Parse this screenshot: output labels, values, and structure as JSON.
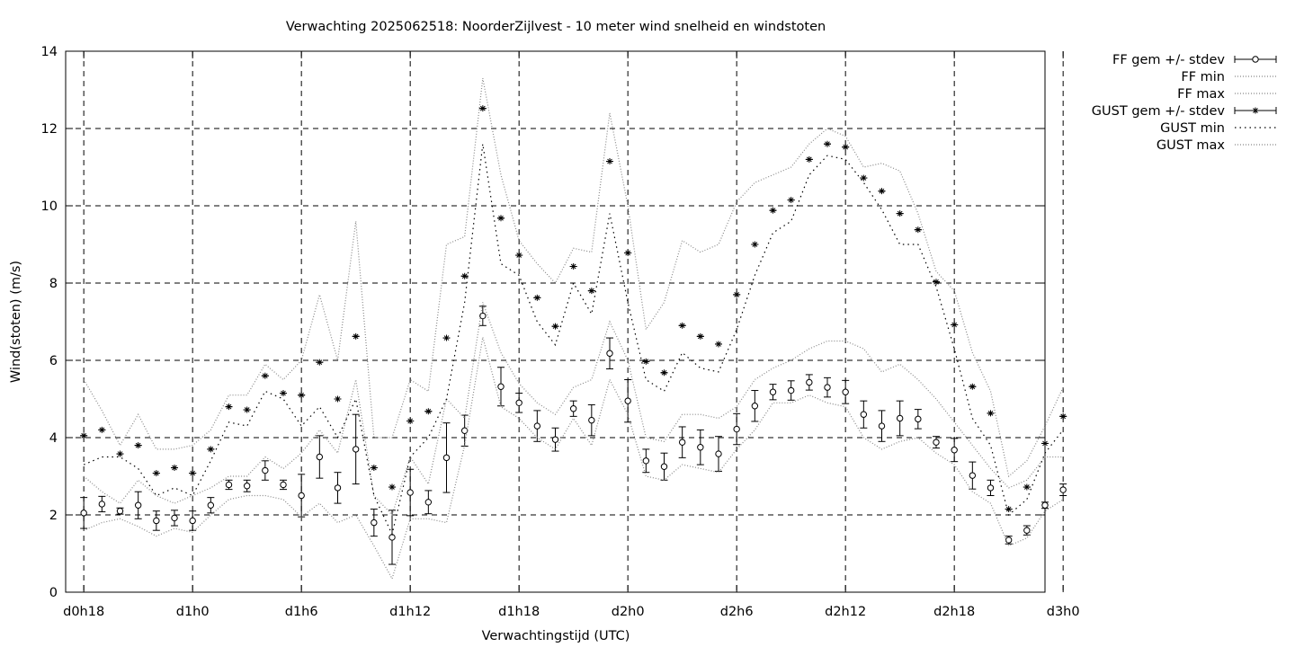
{
  "chart_data": {
    "type": "line",
    "title": "Verwachting 2025062518: NoorderZijlvest - 10 meter wind snelheid en windstoten",
    "xlabel": "Verwachtingstijd (UTC)",
    "ylabel": "Wind(stoten) (m/s)",
    "xlim": [
      17,
      71
    ],
    "ylim": [
      0,
      14
    ],
    "yticks": [
      0,
      2,
      4,
      6,
      8,
      10,
      12,
      14
    ],
    "xticks": [
      {
        "x": 18,
        "label": "d0h18"
      },
      {
        "x": 24,
        "label": "d1h0"
      },
      {
        "x": 30,
        "label": "d1h6"
      },
      {
        "x": 36,
        "label": "d1h12"
      },
      {
        "x": 42,
        "label": "d1h18"
      },
      {
        "x": 48,
        "label": "d2h0"
      },
      {
        "x": 54,
        "label": "d2h6"
      },
      {
        "x": 60,
        "label": "d2h12"
      },
      {
        "x": 66,
        "label": "d2h18"
      },
      {
        "x": 72,
        "label": "d3h0"
      }
    ],
    "grid": true,
    "legend_position": "outside-top-right",
    "x": [
      18,
      19,
      20,
      21,
      22,
      23,
      24,
      25,
      26,
      27,
      28,
      29,
      30,
      31,
      32,
      33,
      34,
      35,
      36,
      37,
      38,
      39,
      40,
      41,
      42,
      43,
      44,
      45,
      46,
      47,
      48,
      49,
      50,
      51,
      52,
      53,
      54,
      55,
      56,
      57,
      58,
      59,
      60,
      61,
      62,
      63,
      64,
      65,
      66,
      67,
      68,
      69,
      70,
      71,
      72
    ],
    "series": [
      {
        "name": "FF gem +/- stdev",
        "style": "points-errorbars",
        "marker": "circle",
        "values": [
          2.05,
          2.28,
          2.1,
          2.25,
          1.85,
          1.92,
          1.85,
          2.25,
          2.78,
          2.75,
          3.15,
          2.78,
          2.5,
          3.5,
          2.7,
          3.7,
          1.8,
          1.42,
          2.58,
          2.33,
          3.48,
          4.18,
          7.15,
          5.32,
          4.9,
          4.3,
          3.95,
          4.75,
          4.45,
          6.18,
          4.95,
          3.4,
          3.25,
          3.88,
          3.75,
          3.58,
          4.22,
          4.82,
          5.18,
          5.22,
          5.43,
          5.3,
          5.18,
          4.6,
          4.3,
          4.5,
          4.48,
          3.88,
          3.68,
          3.02,
          2.7,
          1.35,
          1.6,
          2.25,
          2.65
        ],
        "stdev": [
          0.4,
          0.2,
          0.08,
          0.35,
          0.25,
          0.2,
          0.25,
          0.2,
          0.12,
          0.15,
          0.25,
          0.12,
          0.55,
          0.55,
          0.4,
          0.9,
          0.35,
          0.7,
          0.6,
          0.3,
          0.9,
          0.4,
          0.25,
          0.5,
          0.25,
          0.4,
          0.3,
          0.2,
          0.4,
          0.4,
          0.55,
          0.3,
          0.35,
          0.4,
          0.45,
          0.45,
          0.4,
          0.4,
          0.2,
          0.25,
          0.2,
          0.25,
          0.3,
          0.35,
          0.4,
          0.45,
          0.25,
          0.15,
          0.3,
          0.35,
          0.2,
          0.1,
          0.12,
          0.08,
          0.15
        ]
      },
      {
        "name": "FF min",
        "style": "dotted",
        "values": [
          1.6,
          1.8,
          1.9,
          1.7,
          1.45,
          1.65,
          1.55,
          2.0,
          2.4,
          2.5,
          2.5,
          2.4,
          1.95,
          2.3,
          1.8,
          2.0,
          1.2,
          0.35,
          1.9,
          1.9,
          1.8,
          3.8,
          6.6,
          4.8,
          4.5,
          4.0,
          3.7,
          4.5,
          3.8,
          5.5,
          4.6,
          3.0,
          2.9,
          3.3,
          3.2,
          3.1,
          3.7,
          4.2,
          4.9,
          4.9,
          5.1,
          4.9,
          4.8,
          4.0,
          3.7,
          3.9,
          4.0,
          3.6,
          3.3,
          2.6,
          2.3,
          1.2,
          1.4,
          2.1,
          2.4
        ]
      },
      {
        "name": "FF max",
        "style": "dotted",
        "values": [
          3.0,
          2.6,
          2.3,
          2.9,
          2.5,
          2.3,
          2.5,
          2.7,
          3.0,
          3.0,
          3.5,
          3.2,
          3.6,
          4.2,
          3.6,
          5.5,
          2.5,
          2.0,
          3.5,
          2.8,
          5.0,
          4.5,
          7.5,
          6.2,
          5.4,
          4.9,
          4.6,
          5.3,
          5.5,
          7.0,
          6.0,
          4.0,
          3.9,
          4.6,
          4.6,
          4.5,
          4.8,
          5.5,
          5.8,
          6.0,
          6.3,
          6.5,
          6.5,
          6.3,
          5.7,
          5.9,
          5.5,
          5.0,
          4.4,
          3.8,
          3.2,
          2.7,
          2.9,
          3.5,
          3.5
        ]
      },
      {
        "name": "GUST gem +/- stdev",
        "style": "points-errorbars",
        "marker": "star",
        "values": [
          4.05,
          4.2,
          3.58,
          3.8,
          3.08,
          3.22,
          3.08,
          3.7,
          4.8,
          4.72,
          5.6,
          5.15,
          5.1,
          5.95,
          5.0,
          6.62,
          3.22,
          2.72,
          4.43,
          4.68,
          6.58,
          8.18,
          12.52,
          9.68,
          8.72,
          7.62,
          6.88,
          8.43,
          7.8,
          11.15,
          8.78,
          5.97,
          5.68,
          6.9,
          6.62,
          6.42,
          7.7,
          9.0,
          9.88,
          10.15,
          11.2,
          11.6,
          11.52,
          10.72,
          10.38,
          9.8,
          9.38,
          8.03,
          6.92,
          5.32,
          4.63,
          2.15,
          2.72,
          3.85,
          4.55
        ]
      },
      {
        "name": "GUST min",
        "style": "dotted",
        "values": [
          3.3,
          3.5,
          3.5,
          3.2,
          2.5,
          2.7,
          2.5,
          3.4,
          4.4,
          4.3,
          5.2,
          5.0,
          4.3,
          4.8,
          4.0,
          5.0,
          2.5,
          1.5,
          3.5,
          4.0,
          5.0,
          7.5,
          11.6,
          8.5,
          8.2,
          7.0,
          6.4,
          8.0,
          7.2,
          9.8,
          7.5,
          5.5,
          5.2,
          6.2,
          5.8,
          5.7,
          6.8,
          8.2,
          9.3,
          9.6,
          10.8,
          11.3,
          11.2,
          10.6,
          9.9,
          9.0,
          9.0,
          7.9,
          6.3,
          4.5,
          3.8,
          2.0,
          2.4,
          3.6,
          4.2
        ]
      },
      {
        "name": "GUST max",
        "style": "dotted",
        "values": [
          5.5,
          4.7,
          3.8,
          4.6,
          3.7,
          3.7,
          3.8,
          4.2,
          5.1,
          5.1,
          5.9,
          5.5,
          6.0,
          7.7,
          6.0,
          9.6,
          4.0,
          4.0,
          5.5,
          5.2,
          9.0,
          9.2,
          13.3,
          10.8,
          9.1,
          8.5,
          8.0,
          8.9,
          8.8,
          12.4,
          10.0,
          6.8,
          7.5,
          9.1,
          8.8,
          9.0,
          10.1,
          10.6,
          10.8,
          11.0,
          11.6,
          12.0,
          11.8,
          11.0,
          11.1,
          10.9,
          9.8,
          8.3,
          7.8,
          6.2,
          5.2,
          3.0,
          3.4,
          4.3,
          5.3
        ]
      }
    ]
  }
}
